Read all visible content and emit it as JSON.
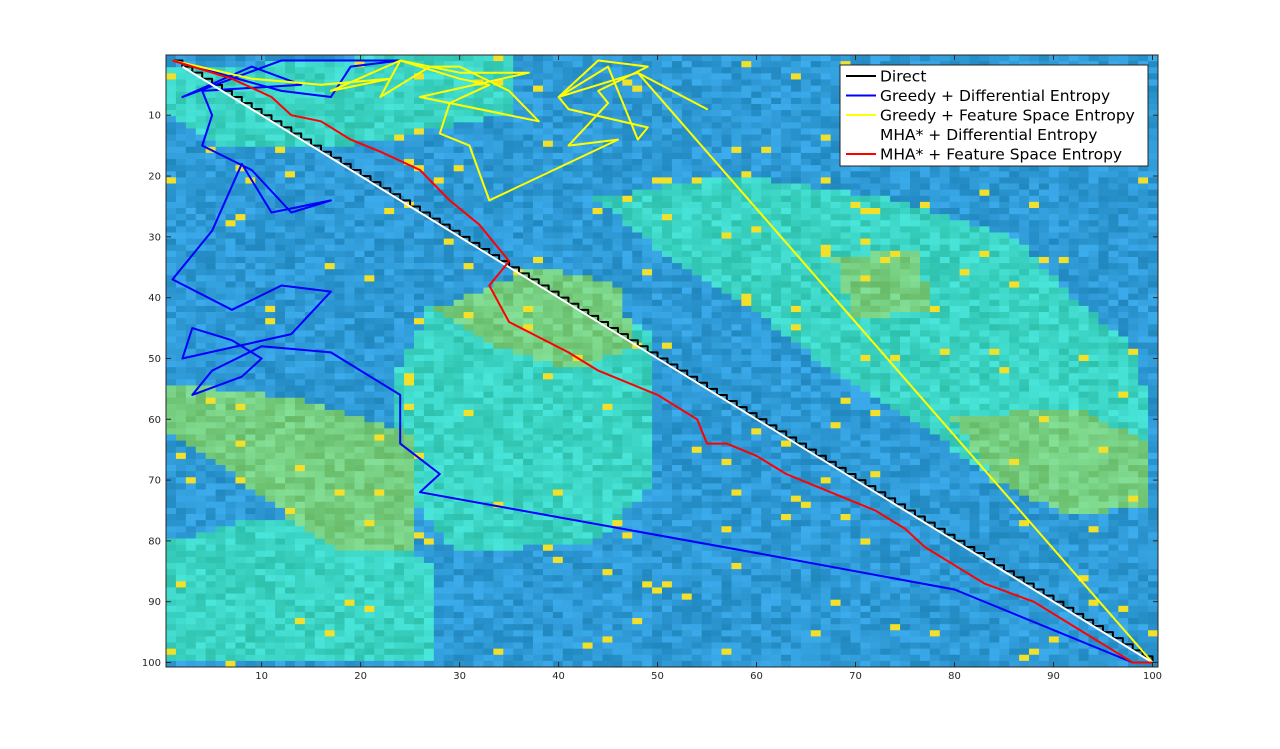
{
  "chart_data": {
    "type": "heatmap",
    "title": "",
    "xlabel": "",
    "ylabel": "",
    "xlim": [
      1,
      100
    ],
    "ylim": [
      1,
      100
    ],
    "y_reversed": true,
    "grid": false,
    "x_ticks": [
      10,
      20,
      30,
      40,
      50,
      60,
      70,
      80,
      90,
      100
    ],
    "y_ticks": [
      10,
      20,
      30,
      40,
      50,
      60,
      70,
      80,
      90,
      100
    ],
    "background": {
      "kind": "noisy-grid",
      "base_color": "#2f9ad6",
      "region_colors": [
        "#3fd6c0",
        "#7fd27f"
      ],
      "speck_color": "#f2e02a"
    },
    "legend": {
      "location": "top-right",
      "entries": [
        {
          "label": "Direct",
          "color": "#000000"
        },
        {
          "label": "Greedy + Differential Entropy",
          "color": "#0000ff"
        },
        {
          "label": "Greedy + Feature Space Entropy",
          "color": "#ffff00"
        },
        {
          "label": "MHA* + Differential Entropy",
          "color": "#ffffff"
        },
        {
          "label": "MHA* + Feature Space Entropy",
          "color": "#ff0000"
        }
      ]
    },
    "series": [
      {
        "name": "Direct",
        "color": "#000000",
        "staircase": true,
        "points": [
          [
            1,
            1
          ],
          [
            100,
            100
          ]
        ]
      },
      {
        "name": "Greedy + Differential Entropy",
        "color": "#0000ff",
        "points": [
          [
            1,
            1
          ],
          [
            12,
            6
          ],
          [
            17,
            7
          ],
          [
            19,
            2
          ],
          [
            24,
            1
          ],
          [
            12,
            1
          ],
          [
            2,
            7
          ],
          [
            9,
            2
          ],
          [
            14,
            5
          ],
          [
            4,
            6
          ],
          [
            5,
            10
          ],
          [
            4,
            15
          ],
          [
            9,
            19
          ],
          [
            13,
            26
          ],
          [
            17,
            24
          ],
          [
            11,
            26
          ],
          [
            8,
            18
          ],
          [
            5,
            29
          ],
          [
            1,
            37
          ],
          [
            7,
            42
          ],
          [
            12,
            38
          ],
          [
            17,
            39
          ],
          [
            13,
            46
          ],
          [
            2,
            50
          ],
          [
            3,
            45
          ],
          [
            7,
            47
          ],
          [
            10,
            50
          ],
          [
            8,
            53
          ],
          [
            3,
            56
          ],
          [
            5,
            52
          ],
          [
            10,
            48
          ],
          [
            17,
            49
          ],
          [
            24,
            56
          ],
          [
            24,
            64
          ],
          [
            28,
            69
          ],
          [
            26,
            72
          ],
          [
            60,
            82
          ],
          [
            80,
            88
          ],
          [
            98,
            100
          ],
          [
            100,
            100
          ]
        ]
      },
      {
        "name": "Greedy + Feature Space Entropy",
        "color": "#ffff00",
        "points": [
          [
            1,
            1
          ],
          [
            9,
            4
          ],
          [
            16,
            5
          ],
          [
            23,
            4
          ],
          [
            17,
            6
          ],
          [
            24,
            1
          ],
          [
            30,
            3
          ],
          [
            37,
            3
          ],
          [
            26,
            7
          ],
          [
            38,
            11
          ],
          [
            35,
            6
          ],
          [
            30,
            2
          ],
          [
            27,
            2
          ],
          [
            22,
            7
          ],
          [
            24,
            1
          ],
          [
            30,
            4
          ],
          [
            33,
            5
          ],
          [
            29,
            8
          ],
          [
            28,
            13
          ],
          [
            31,
            15
          ],
          [
            33,
            24
          ],
          [
            46,
            14
          ],
          [
            41,
            15
          ],
          [
            45,
            8
          ],
          [
            44,
            6
          ],
          [
            49,
            2
          ],
          [
            44,
            1
          ],
          [
            40,
            7
          ],
          [
            41,
            9
          ],
          [
            49,
            12
          ],
          [
            48,
            14
          ],
          [
            45,
            2
          ],
          [
            40,
            7
          ],
          [
            48,
            3
          ],
          [
            55,
            9
          ],
          [
            48,
            3
          ],
          [
            100,
            100
          ]
        ]
      },
      {
        "name": "MHA* + Differential Entropy",
        "color": "#ffffff",
        "points": [
          [
            2,
            2
          ],
          [
            100,
            100
          ]
        ]
      },
      {
        "name": "MHA* + Feature Space Entropy",
        "color": "#ff0000",
        "points": [
          [
            1,
            1
          ],
          [
            7,
            4
          ],
          [
            11,
            7
          ],
          [
            13,
            10
          ],
          [
            16,
            11
          ],
          [
            19,
            14
          ],
          [
            22,
            16
          ],
          [
            26,
            19
          ],
          [
            29,
            24
          ],
          [
            32,
            28
          ],
          [
            35,
            34
          ],
          [
            33,
            38
          ],
          [
            35,
            44
          ],
          [
            41,
            49
          ],
          [
            44,
            52
          ],
          [
            50,
            56
          ],
          [
            54,
            60
          ],
          [
            55,
            64
          ],
          [
            57,
            64
          ],
          [
            60,
            66
          ],
          [
            63,
            69
          ],
          [
            66,
            71
          ],
          [
            72,
            75
          ],
          [
            75,
            78
          ],
          [
            77,
            81
          ],
          [
            81,
            85
          ],
          [
            83,
            87
          ],
          [
            88,
            90
          ],
          [
            93,
            95
          ],
          [
            96,
            98
          ],
          [
            98,
            100
          ],
          [
            100,
            100
          ]
        ]
      }
    ]
  }
}
